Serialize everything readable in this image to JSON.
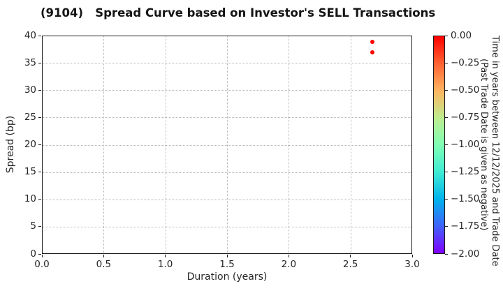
{
  "chart_data": {
    "type": "scatter",
    "title": "(9104)   Spread Curve based on Investor's SELL Transactions",
    "xlabel": "Duration (years)",
    "ylabel": "Spread (bp)",
    "xlim": [
      0.0,
      3.0
    ],
    "ylim": [
      0,
      40
    ],
    "xticks": [
      {
        "value": 0.0,
        "label": "0.0"
      },
      {
        "value": 0.5,
        "label": "0.5"
      },
      {
        "value": 1.0,
        "label": "1.0"
      },
      {
        "value": 1.5,
        "label": "1.5"
      },
      {
        "value": 2.0,
        "label": "2.0"
      },
      {
        "value": 2.5,
        "label": "2.5"
      },
      {
        "value": 3.0,
        "label": "3.0"
      }
    ],
    "yticks": [
      {
        "value": 0,
        "label": "0"
      },
      {
        "value": 5,
        "label": "5"
      },
      {
        "value": 10,
        "label": "10"
      },
      {
        "value": 15,
        "label": "15"
      },
      {
        "value": 20,
        "label": "20"
      },
      {
        "value": 25,
        "label": "25"
      },
      {
        "value": 30,
        "label": "30"
      },
      {
        "value": 35,
        "label": "35"
      },
      {
        "value": 40,
        "label": "40"
      }
    ],
    "grid": true,
    "legend": "none",
    "points": [
      {
        "x": 2.67,
        "y": 39,
        "color_value": 0.0,
        "color": "#ff0000"
      },
      {
        "x": 2.67,
        "y": 37,
        "color_value": 0.0,
        "color": "#ff0000"
      }
    ],
    "colorbar": {
      "label_line1": "Time in years between 12/12/2025 and Trade Date",
      "label_line2": "(Past Trade Date is given as negative)",
      "range_top": 0.0,
      "range_bottom": -2.0,
      "ticks": [
        "0.00",
        "−0.25",
        "−0.50",
        "−0.75",
        "−1.00",
        "−1.25",
        "−1.50",
        "−1.75",
        "−2.00"
      ],
      "colormap": "rainbow",
      "gradient_stops": [
        "#ff0000",
        "#ff6232",
        "#ffb461",
        "#bfec8e",
        "#80ffb4",
        "#40ecd4",
        "#00b4ec",
        "#4062fa",
        "#8000ff"
      ]
    },
    "colors": {
      "frame": "#1a1a1a",
      "grid": "#b5b5b5",
      "text": "#262626",
      "background": "#ffffff"
    }
  }
}
